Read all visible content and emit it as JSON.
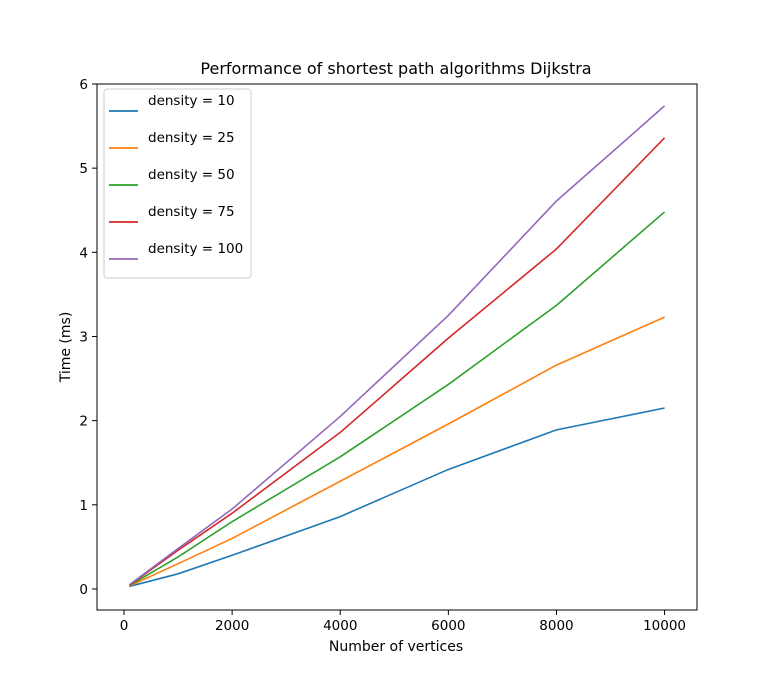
{
  "chart_data": {
    "type": "line",
    "title": "Performance of shortest path algorithms Dijkstra",
    "xlabel": "Number of vertices",
    "ylabel": "Time (ms)",
    "xlim": [
      -500,
      10600
    ],
    "ylim": [
      -0.25,
      6.0
    ],
    "xticks": [
      0,
      2000,
      4000,
      6000,
      8000,
      10000
    ],
    "yticks": [
      0,
      1,
      2,
      3,
      4,
      5,
      6
    ],
    "grid": false,
    "legend_position": "upper-left",
    "x": [
      100,
      1000,
      2000,
      4000,
      6000,
      8000,
      10000
    ],
    "series": [
      {
        "name": "density = 10",
        "color": "#1f77b4",
        "values": [
          0.03,
          0.18,
          0.4,
          0.86,
          1.42,
          1.89,
          2.15
        ]
      },
      {
        "name": "density = 25",
        "color": "#ff7f0e",
        "values": [
          0.035,
          0.3,
          0.6,
          1.28,
          1.96,
          2.66,
          3.23
        ]
      },
      {
        "name": "density = 50",
        "color": "#2ca02c",
        "values": [
          0.04,
          0.38,
          0.8,
          1.57,
          2.43,
          3.37,
          4.48
        ]
      },
      {
        "name": "density = 75",
        "color": "#d62728",
        "values": [
          0.045,
          0.46,
          0.9,
          1.86,
          2.98,
          4.04,
          5.36
        ]
      },
      {
        "name": "density = 100",
        "color": "#9467bd",
        "values": [
          0.05,
          0.48,
          0.95,
          2.05,
          3.25,
          4.61,
          5.74
        ]
      }
    ]
  }
}
